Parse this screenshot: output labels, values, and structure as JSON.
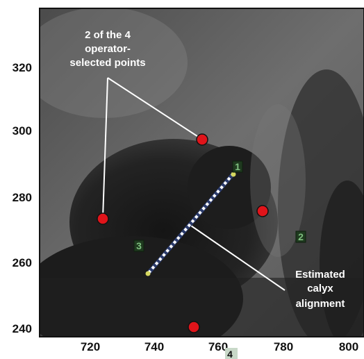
{
  "x_axis": {
    "ticks": [
      "720",
      "740",
      "760",
      "780",
      "800"
    ]
  },
  "y_axis": {
    "ticks": [
      "320",
      "300",
      "280",
      "260",
      "240"
    ]
  },
  "annotations": {
    "top": [
      "2 of the 4",
      "operator-",
      "selected points"
    ],
    "bottom": [
      "Estimated",
      "calyx",
      "alignment"
    ]
  },
  "markers": [
    "1",
    "2",
    "3",
    "4"
  ],
  "colors": {
    "point": "#e0141a",
    "line": "#ffffff",
    "label_box": "#1f3a1f"
  }
}
